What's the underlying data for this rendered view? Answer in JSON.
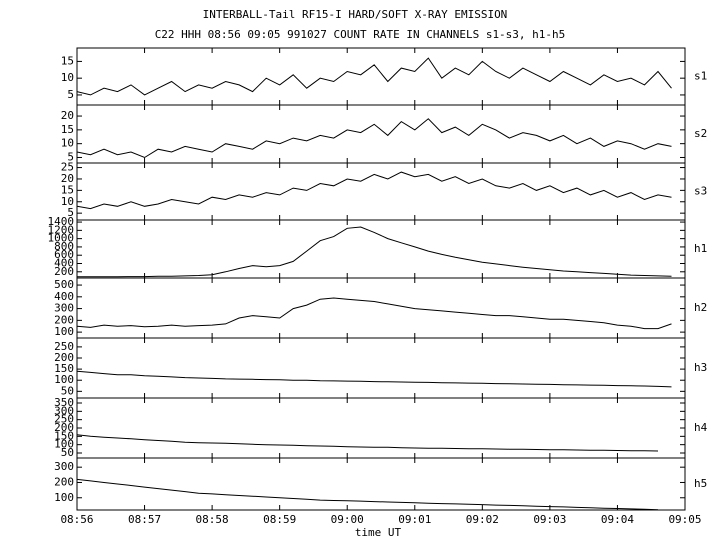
{
  "header": {
    "title": "INTERBALL-Tail RF15-I HARD/SOFT X-RAY EMISSION",
    "subtitle": "C22 HHH 08:56 09:05 991027  COUNT RATE IN CHANNELS s1-s3, h1-h5"
  },
  "x_axis": {
    "label": "time UT",
    "xlim": [
      0,
      9
    ],
    "xticks": [
      {
        "value": 0,
        "label": "08:56"
      },
      {
        "value": 1,
        "label": "08:57"
      },
      {
        "value": 2,
        "label": "08:58"
      },
      {
        "value": 3,
        "label": "08:59"
      },
      {
        "value": 4,
        "label": "09:00"
      },
      {
        "value": 5,
        "label": "09:01"
      },
      {
        "value": 6,
        "label": "09:02"
      },
      {
        "value": 7,
        "label": "09:03"
      },
      {
        "value": 8,
        "label": "09:04"
      },
      {
        "value": 9,
        "label": "09:05"
      }
    ],
    "x": [
      0,
      0.2,
      0.4,
      0.6,
      0.8,
      1,
      1.2,
      1.4,
      1.6,
      1.8,
      2,
      2.2,
      2.4,
      2.6,
      2.8,
      3,
      3.2,
      3.4,
      3.6,
      3.8,
      4,
      4.2,
      4.4,
      4.6,
      4.8,
      5,
      5.2,
      5.4,
      5.6,
      5.8,
      6,
      6.2,
      6.4,
      6.6,
      6.8,
      7,
      7.2,
      7.4,
      7.6,
      7.8,
      8,
      8.2,
      8.4,
      8.6,
      8.8
    ]
  },
  "chart_data": [
    {
      "type": "line",
      "label": "s1",
      "color": "#000000",
      "ylim": [
        2,
        19
      ],
      "yticks": [
        5,
        10,
        15
      ],
      "values": [
        6,
        5,
        7,
        6,
        8,
        5,
        7,
        9,
        6,
        8,
        7,
        9,
        8,
        6,
        10,
        8,
        11,
        7,
        10,
        9,
        12,
        11,
        14,
        9,
        13,
        12,
        16,
        10,
        13,
        11,
        15,
        12,
        10,
        13,
        11,
        9,
        12,
        10,
        8,
        11,
        9,
        10,
        8,
        12,
        7
      ]
    },
    {
      "type": "line",
      "label": "s2",
      "color": "#000000",
      "ylim": [
        3,
        24
      ],
      "yticks": [
        5,
        10,
        15,
        20
      ],
      "values": [
        7,
        6,
        8,
        6,
        7,
        5,
        8,
        7,
        9,
        8,
        7,
        10,
        9,
        8,
        11,
        10,
        12,
        11,
        13,
        12,
        15,
        14,
        17,
        13,
        18,
        15,
        19,
        14,
        16,
        13,
        17,
        15,
        12,
        14,
        13,
        11,
        13,
        10,
        12,
        9,
        11,
        10,
        8,
        10,
        9
      ]
    },
    {
      "type": "line",
      "label": "s3",
      "color": "#000000",
      "ylim": [
        2,
        27
      ],
      "yticks": [
        5,
        10,
        15,
        20,
        25
      ],
      "values": [
        8,
        7,
        9,
        8,
        10,
        8,
        9,
        11,
        10,
        9,
        12,
        11,
        13,
        12,
        14,
        13,
        16,
        15,
        18,
        17,
        20,
        19,
        22,
        20,
        23,
        21,
        22,
        19,
        21,
        18,
        20,
        17,
        16,
        18,
        15,
        17,
        14,
        16,
        13,
        15,
        12,
        14,
        11,
        13,
        12
      ]
    },
    {
      "type": "line",
      "label": "h1",
      "color": "#000000",
      "ylim": [
        50,
        1450
      ],
      "yticks": [
        200,
        400,
        600,
        800,
        1000,
        1200,
        1400
      ],
      "values": [
        80,
        80,
        80,
        80,
        85,
        85,
        90,
        90,
        100,
        110,
        130,
        200,
        280,
        350,
        320,
        350,
        450,
        700,
        950,
        1050,
        1250,
        1280,
        1150,
        1000,
        900,
        800,
        700,
        620,
        550,
        490,
        430,
        390,
        350,
        310,
        280,
        250,
        220,
        200,
        180,
        160,
        140,
        120,
        110,
        100,
        90
      ]
    },
    {
      "type": "line",
      "label": "h2",
      "color": "#000000",
      "ylim": [
        50,
        560
      ],
      "yticks": [
        100,
        200,
        300,
        400,
        500
      ],
      "values": [
        150,
        140,
        160,
        150,
        155,
        145,
        150,
        160,
        150,
        155,
        160,
        170,
        220,
        240,
        230,
        220,
        300,
        330,
        380,
        390,
        380,
        370,
        360,
        340,
        320,
        300,
        290,
        280,
        270,
        260,
        250,
        240,
        240,
        230,
        220,
        210,
        210,
        200,
        190,
        180,
        160,
        150,
        130,
        130,
        170
      ]
    },
    {
      "type": "line",
      "label": "h3",
      "color": "#000000",
      "ylim": [
        20,
        290
      ],
      "yticks": [
        50,
        100,
        150,
        200,
        250
      ],
      "values": [
        140,
        135,
        130,
        125,
        125,
        120,
        118,
        115,
        112,
        110,
        108,
        106,
        105,
        104,
        103,
        102,
        100,
        100,
        98,
        97,
        96,
        95,
        94,
        93,
        92,
        91,
        90,
        89,
        88,
        87,
        86,
        85,
        84,
        83,
        82,
        81,
        80,
        79,
        78,
        77,
        76,
        75,
        74,
        72,
        70
      ]
    },
    {
      "type": "line",
      "label": "h4",
      "color": "#000000",
      "ylim": [
        20,
        380
      ],
      "yticks": [
        50,
        100,
        150,
        200,
        250,
        300,
        350
      ],
      "values": [
        160,
        150,
        145,
        140,
        135,
        130,
        125,
        120,
        115,
        112,
        110,
        108,
        105,
        102,
        100,
        98,
        96,
        94,
        92,
        90,
        88,
        86,
        85,
        84,
        82,
        80,
        79,
        78,
        77,
        76,
        75,
        74,
        73,
        72,
        71,
        70,
        69,
        68,
        67,
        66,
        65,
        64,
        63,
        62,
        null
      ]
    },
    {
      "type": "line",
      "label": "h5",
      "color": "#000000",
      "ylim": [
        20,
        360
      ],
      "yticks": [
        100,
        200,
        300
      ],
      "values": [
        220,
        210,
        200,
        190,
        180,
        170,
        160,
        150,
        140,
        130,
        125,
        120,
        115,
        110,
        105,
        100,
        95,
        90,
        85,
        82,
        80,
        78,
        75,
        72,
        70,
        67,
        64,
        62,
        60,
        57,
        55,
        52,
        50,
        48,
        45,
        42,
        40,
        37,
        35,
        32,
        30,
        27,
        25,
        22,
        null
      ]
    }
  ]
}
